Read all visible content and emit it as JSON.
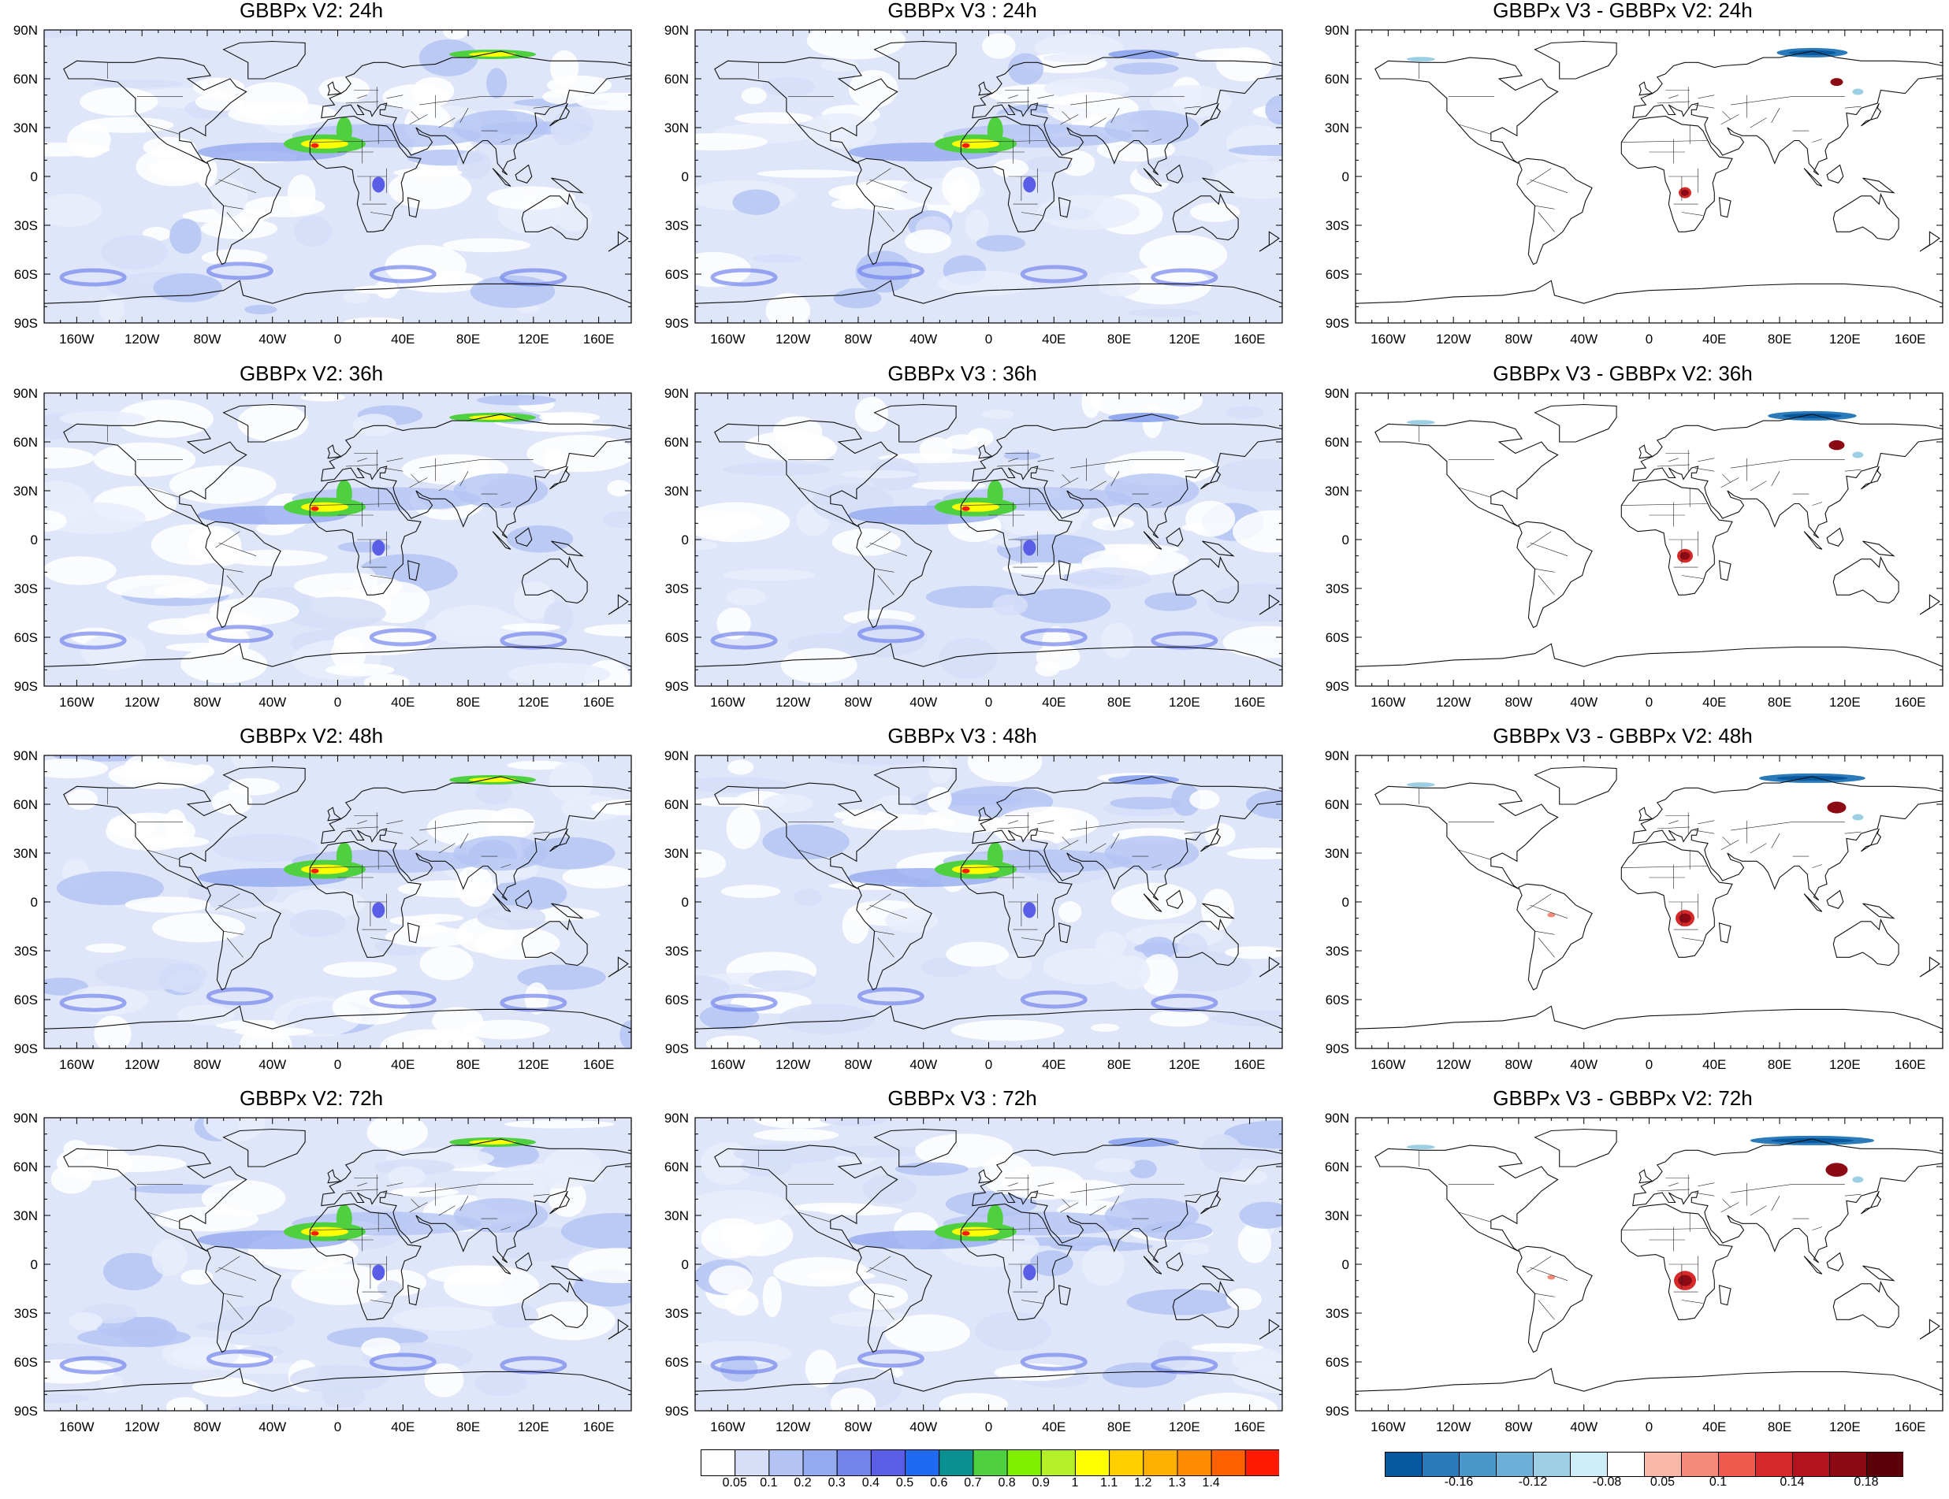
{
  "figure": {
    "lat_labels": [
      "90N",
      "60N",
      "30N",
      "0",
      "30S",
      "60S",
      "90S"
    ],
    "lon_labels": [
      "160W",
      "120W",
      "80W",
      "40W",
      "0",
      "40E",
      "80E",
      "120E",
      "160E"
    ]
  },
  "panels": [
    {
      "title": "GBBPx V2: 24h",
      "kind": "aod"
    },
    {
      "title": "GBBPx V3 : 24h",
      "kind": "aod"
    },
    {
      "title": "GBBPx V3 - GBBPx V2: 24h",
      "kind": "diff"
    },
    {
      "title": "GBBPx V2: 36h",
      "kind": "aod"
    },
    {
      "title": "GBBPx V3 : 36h",
      "kind": "aod"
    },
    {
      "title": "GBBPx V3 - GBBPx V2: 36h",
      "kind": "diff"
    },
    {
      "title": "GBBPx V2: 48h",
      "kind": "aod"
    },
    {
      "title": "GBBPx V3 : 48h",
      "kind": "aod"
    },
    {
      "title": "GBBPx V3 - GBBPx V2: 48h",
      "kind": "diff"
    },
    {
      "title": "GBBPx V2: 72h",
      "kind": "aod"
    },
    {
      "title": "GBBPx V3 : 72h",
      "kind": "aod"
    },
    {
      "title": "GBBPx V3 - GBBPx V2: 72h",
      "kind": "diff"
    }
  ],
  "colorbar_main": {
    "colors": [
      "#ffffff",
      "#d6def8",
      "#b4c4f4",
      "#93aaf0",
      "#7385ec",
      "#5a5ee6",
      "#1f6af0",
      "#0a9090",
      "#4fd040",
      "#7ef000",
      "#b4f028",
      "#ffff00",
      "#ffcf00",
      "#ffb000",
      "#ff8c00",
      "#ff6000",
      "#ff1a00"
    ],
    "labels": [
      "0.05",
      "0.1",
      "0.2",
      "0.3",
      "0.4",
      "0.5",
      "0.6",
      "0.7",
      "0.8",
      "0.9",
      "1",
      "1.1",
      "1.2",
      "1.3",
      "1.4"
    ]
  },
  "colorbar_diff": {
    "colors": [
      "#08589e",
      "#2b7bba",
      "#4a98c9",
      "#6bb0d6",
      "#9ccfe4",
      "#cdeef8",
      "#ffffff",
      "#f9b8a8",
      "#f58a78",
      "#ee5a4e",
      "#d62a2a",
      "#b3131c",
      "#8c0a14",
      "#5c000a"
    ],
    "labels": [
      "-0.16",
      "-0.12",
      "-0.08",
      "0.05",
      "0.1",
      "0.14",
      "0.18"
    ]
  }
}
